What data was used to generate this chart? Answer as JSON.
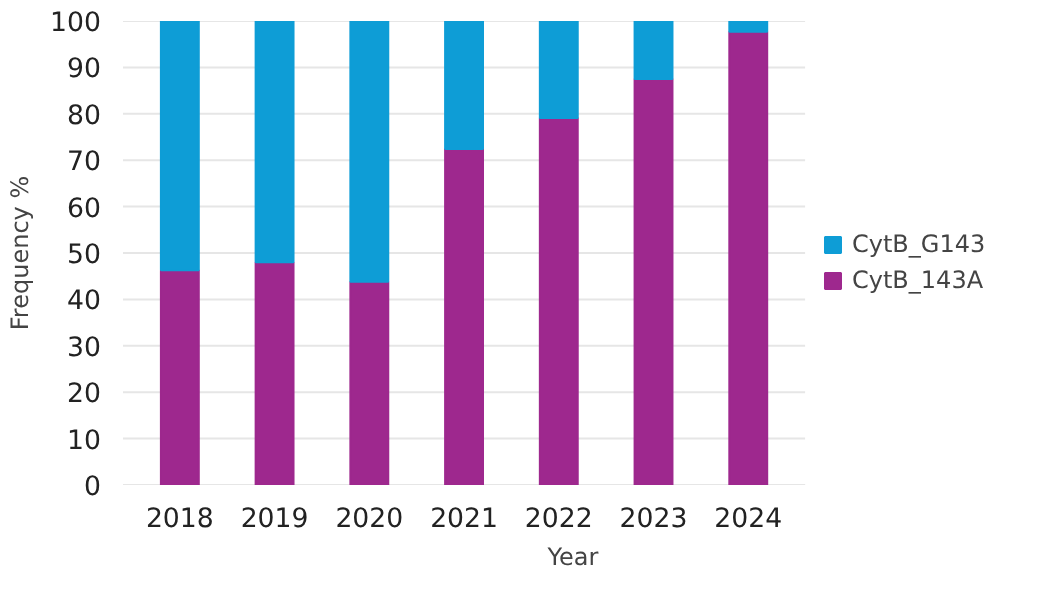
{
  "chart_data": {
    "type": "bar",
    "stacked": true,
    "xlabel": "Year",
    "ylabel": "Frequency %",
    "categories": [
      "2018",
      "2019",
      "2020",
      "2021",
      "2022",
      "2023",
      "2024"
    ],
    "series": [
      {
        "name": "CytB_143A",
        "color": "#9e288e",
        "values": [
          46.3,
          48.0,
          43.8,
          72.4,
          79.1,
          87.5,
          97.7
        ]
      },
      {
        "name": "CytB_G143",
        "color": "#0e9dd6",
        "values": [
          53.7,
          52.0,
          56.2,
          27.6,
          20.9,
          12.5,
          2.3
        ]
      }
    ],
    "ylim": [
      0,
      100
    ],
    "yticks": [
      0,
      10,
      20,
      30,
      40,
      50,
      60,
      70,
      80,
      90,
      100
    ],
    "grid": "y",
    "legend": "right"
  }
}
